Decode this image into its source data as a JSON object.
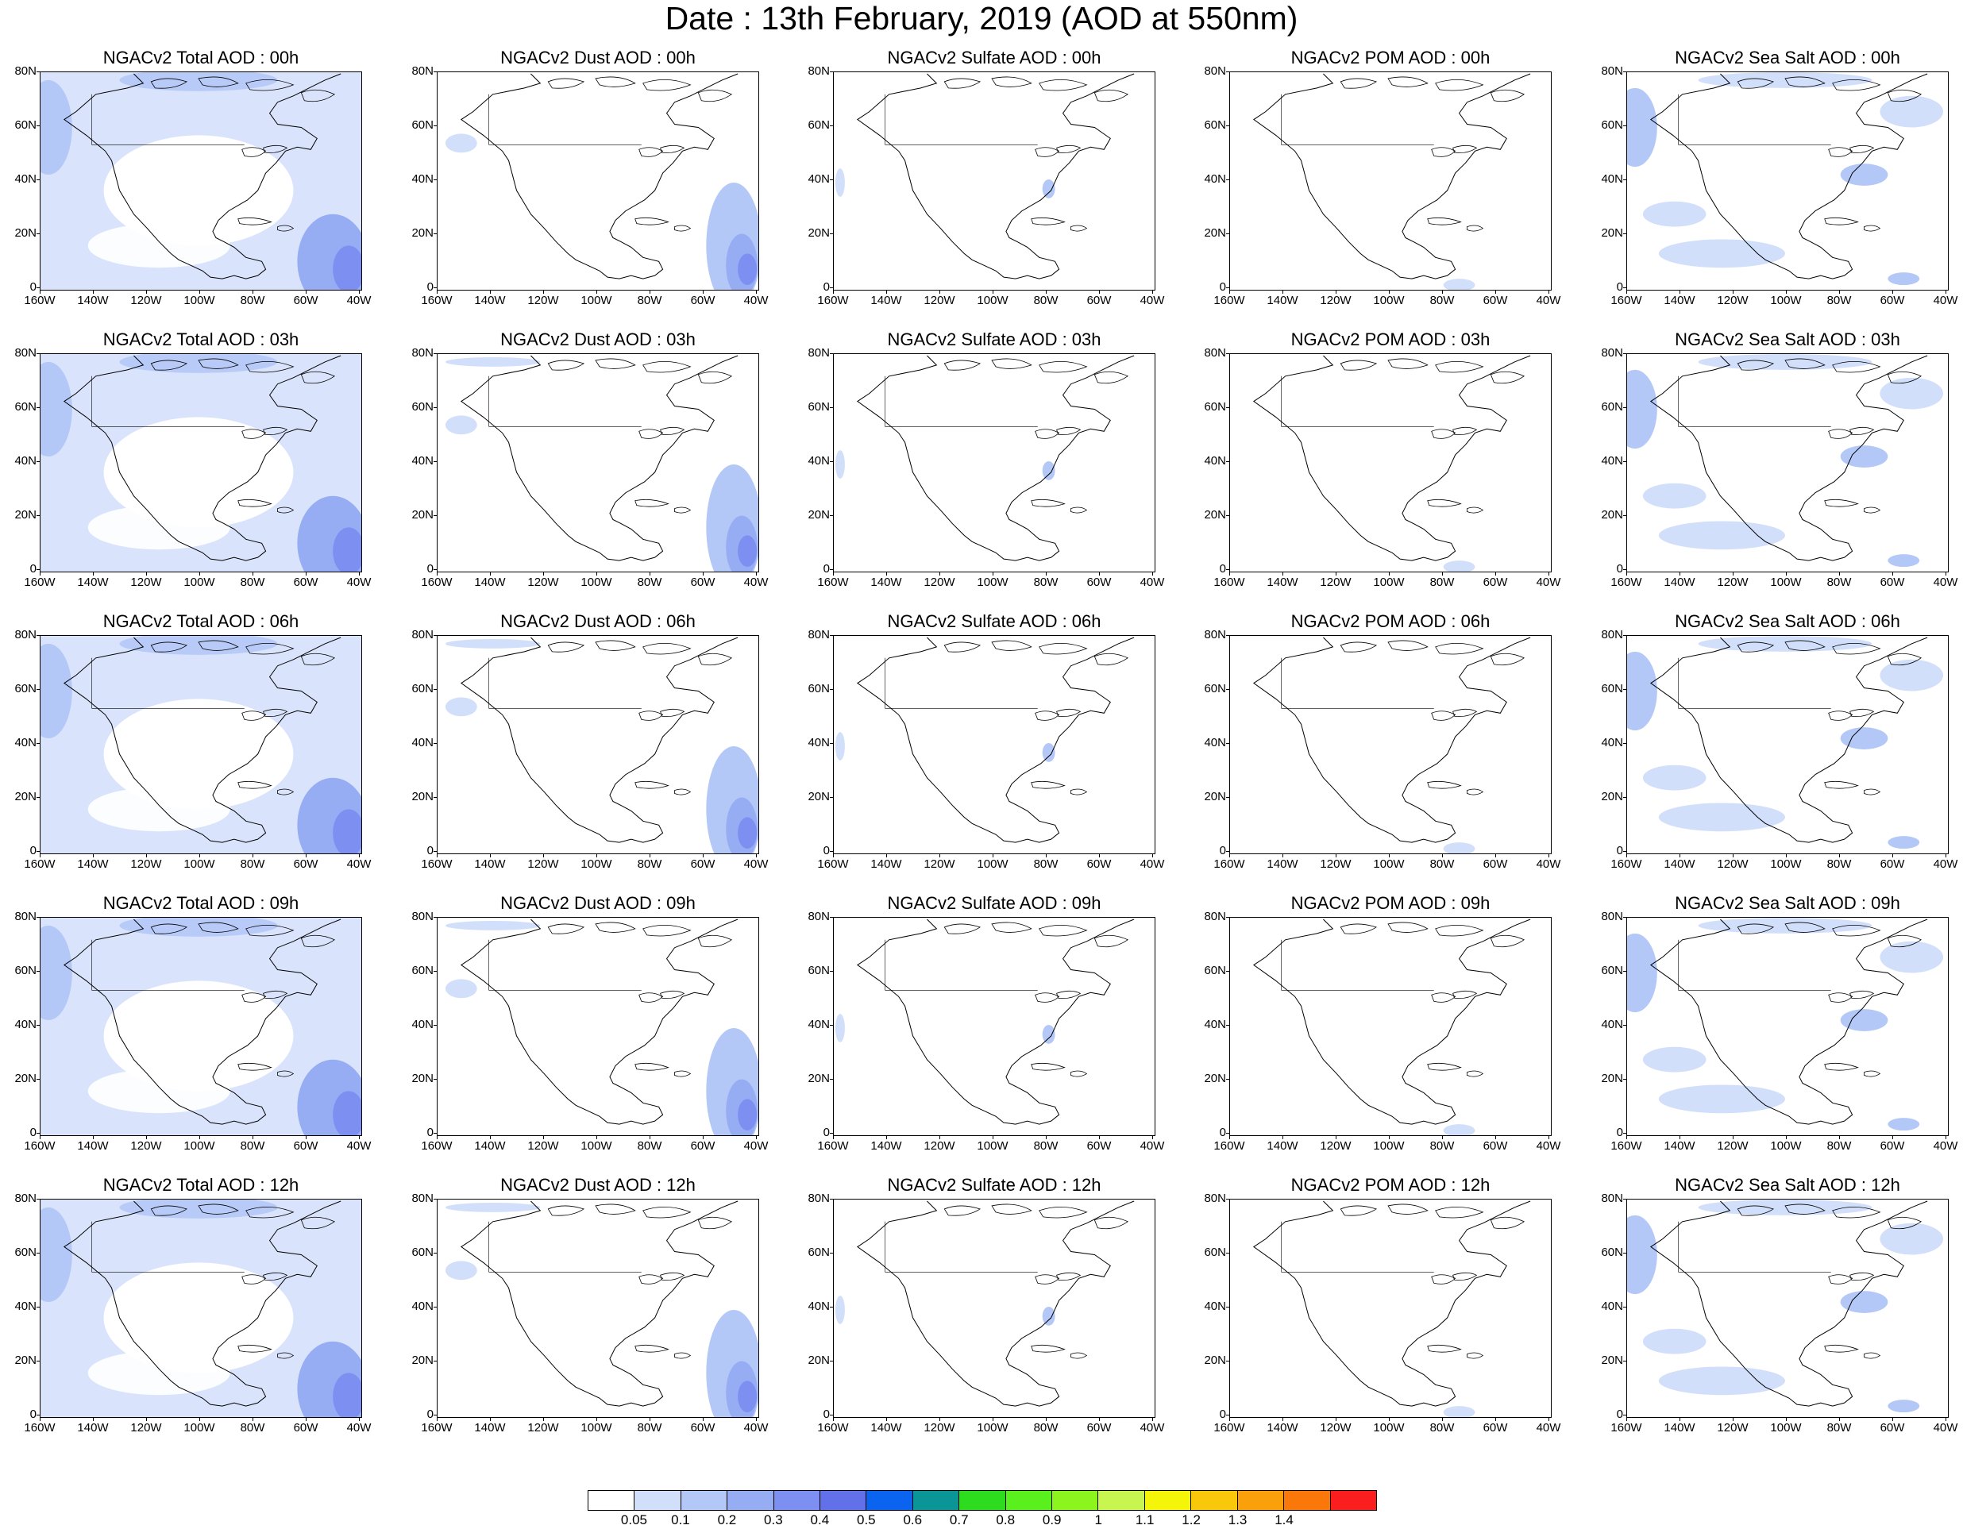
{
  "title": "Date : 13th February, 2019 (AOD at 550nm)",
  "lat_labels": [
    "80N",
    "60N",
    "40N",
    "20N",
    "0"
  ],
  "lon_labels": [
    "160W",
    "140W",
    "120W",
    "100W",
    "80W",
    "60W",
    "40W"
  ],
  "rows": [
    [
      "NGACv2 Total AOD : 00h",
      "NGACv2 Dust AOD : 00h",
      "NGACv2 Sulfate AOD : 00h",
      "NGACv2 POM AOD : 00h",
      "NGACv2 Sea Salt AOD : 00h"
    ],
    [
      "NGACv2 Total AOD : 03h",
      "NGACv2 Dust AOD : 03h",
      "NGACv2 Sulfate AOD : 03h",
      "NGACv2 POM AOD : 03h",
      "NGACv2 Sea Salt AOD : 03h"
    ],
    [
      "NGACv2 Total AOD : 06h",
      "NGACv2 Dust AOD : 06h",
      "NGACv2 Sulfate AOD : 06h",
      "NGACv2 POM AOD : 06h",
      "NGACv2 Sea Salt AOD : 06h"
    ],
    [
      "NGACv2 Total AOD : 09h",
      "NGACv2 Dust AOD : 09h",
      "NGACv2 Sulfate AOD : 09h",
      "NGACv2 POM AOD : 09h",
      "NGACv2 Sea Salt  AOD : 09h"
    ],
    [
      "NGACv2 Total AOD  : 12h",
      "NGACv2 Dust AOD : 12h",
      "NGACv2 Sulfate AOD : 12h",
      "NGACv2 POM  AOD : 12h",
      "NGACv2 Sea Salt  AOD : 12h"
    ]
  ],
  "colorbar": {
    "colors": [
      "#ffffff",
      "#d2dffb",
      "#b4c8f7",
      "#96acf3",
      "#7d8ff0",
      "#6270ea",
      "#0a64f0",
      "#0a9696",
      "#2ddc1e",
      "#5af01e",
      "#8cf51e",
      "#c8f550",
      "#f5f50a",
      "#fac80a",
      "#faa00a",
      "#fa780a",
      "#fa1e1e"
    ],
    "labels": [
      "0.05",
      "0.1",
      "0.2",
      "0.3",
      "0.4",
      "0.5",
      "0.6",
      "0.7",
      "0.8",
      "0.9",
      "1",
      "1.1",
      "1.2",
      "1.3",
      "1.4"
    ]
  }
}
